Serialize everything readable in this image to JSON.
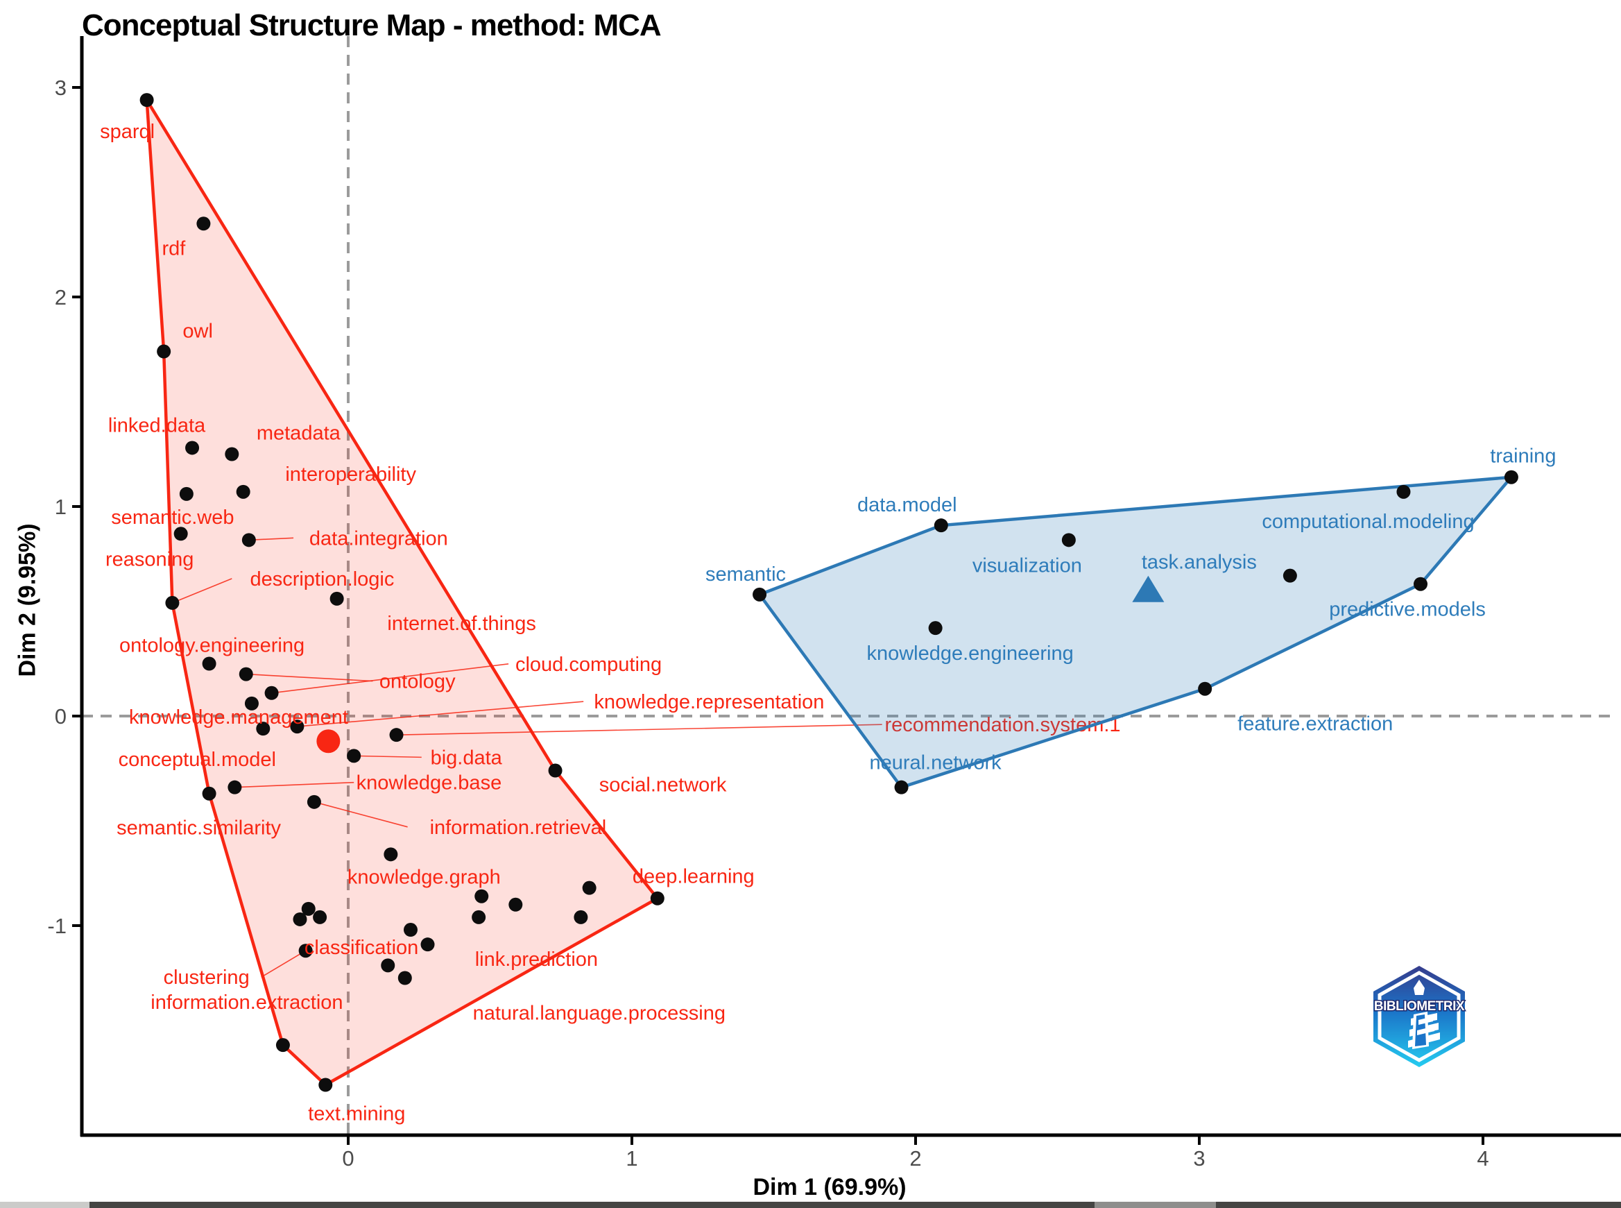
{
  "title": "Conceptual Structure Map - method: MCA",
  "axes": {
    "x_label": "Dim 1 (69.9%)",
    "y_label": "Dim 2 (9.95%)",
    "x_ticks": [
      {
        "value": 0,
        "label": "0"
      },
      {
        "value": 1,
        "label": "1"
      },
      {
        "value": 2,
        "label": "2"
      },
      {
        "value": 3,
        "label": "3"
      },
      {
        "value": 4,
        "label": "4"
      }
    ],
    "y_ticks": [
      {
        "value": 3,
        "label": "3"
      },
      {
        "value": 2,
        "label": "2"
      },
      {
        "value": 1,
        "label": "1"
      },
      {
        "value": 0,
        "label": "0"
      },
      {
        "value": -1,
        "label": "-1"
      }
    ]
  },
  "colors": {
    "red_stroke": "#f82613",
    "red_fill": "rgba(248,38,19,0.15)",
    "red_text": "#f82613",
    "blue_stroke": "#2d79b5",
    "blue_fill": "rgba(45,121,181,0.22)",
    "blue_text": "#2e7cba",
    "dot": "#0d0d0d",
    "dashed": "#9b9b9b",
    "axis": "#000000",
    "tick_text": "#4c4c4c"
  },
  "logo": {
    "text": "BIBLIOMETRIX"
  },
  "chart_data": {
    "type": "scatter",
    "title": "Conceptual Structure Map - method: MCA",
    "xlabel": "Dim 1 (69.9%)",
    "ylabel": "Dim 2 (9.95%)",
    "xlim": [
      -1.0,
      4.5
    ],
    "ylim": [
      -2.0,
      3.25
    ],
    "grid": false,
    "zero_lines_dashed": true,
    "clusters": [
      {
        "name": "cluster-red",
        "centroid": {
          "x": -0.07,
          "y": -0.12,
          "marker": "circle"
        },
        "hull": [
          [
            -0.71,
            2.94
          ],
          [
            0.73,
            -0.26
          ],
          [
            1.09,
            -0.87
          ],
          [
            -0.08,
            -1.76
          ],
          [
            -0.23,
            -1.57
          ],
          [
            -0.49,
            -0.37
          ],
          [
            -0.62,
            0.54
          ],
          [
            -0.65,
            1.74
          ]
        ],
        "points": [
          {
            "term": "sparql",
            "x": -0.71,
            "y": 2.94,
            "dx": -28,
            "dy": 45,
            "leader": false
          },
          {
            "term": "rdf",
            "x": -0.51,
            "y": 2.35,
            "dx": -43,
            "dy": 35,
            "leader": false
          },
          {
            "term": "owl",
            "x": -0.65,
            "y": 1.74,
            "dx": 49,
            "dy": -30,
            "leader": false
          },
          {
            "term": "linked.data",
            "x": -0.55,
            "y": 1.28,
            "dx": -51,
            "dy": -33,
            "leader": false
          },
          {
            "term": "metadata",
            "x": -0.41,
            "y": 1.25,
            "dx": 96,
            "dy": -31,
            "leader": false
          },
          {
            "term": "semantic.web",
            "x": -0.57,
            "y": 1.06,
            "dx": -20,
            "dy": 33,
            "leader": false
          },
          {
            "term": "interoperability",
            "x": -0.37,
            "y": 1.07,
            "dx": 155,
            "dy": -26,
            "leader": false
          },
          {
            "term": "reasoning",
            "x": -0.59,
            "y": 0.87,
            "dx": -45,
            "dy": 36,
            "leader": false
          },
          {
            "term": "data.integration",
            "x": -0.35,
            "y": 0.84,
            "dx": 187,
            "dy": -3,
            "leader": true
          },
          {
            "term": "description.logic",
            "x": -0.62,
            "y": 0.54,
            "dx": 216,
            "dy": -35,
            "leader": true
          },
          {
            "term": "internet.of.things",
            "x": -0.04,
            "y": 0.56,
            "dx": 180,
            "dy": 35,
            "leader": false
          },
          {
            "term": "ontology.engineering",
            "x": -0.49,
            "y": 0.25,
            "dx": 4,
            "dy": -27,
            "leader": false
          },
          {
            "term": "ontology",
            "x": -0.36,
            "y": 0.2,
            "dx": 247,
            "dy": 10,
            "leader": true
          },
          {
            "term": "cloud.computing",
            "x": -0.27,
            "y": 0.11,
            "dx": 457,
            "dy": -42,
            "leader": true
          },
          {
            "term": "knowledge.management",
            "x": -0.34,
            "y": 0.06,
            "dx": -19,
            "dy": 19,
            "leader": false
          },
          {
            "term": "conceptual.model",
            "x": -0.3,
            "y": -0.06,
            "dx": -95,
            "dy": 44,
            "leader": false
          },
          {
            "term": "knowledge.representation",
            "x": -0.18,
            "y": -0.05,
            "dx": 594,
            "dy": -36,
            "leader": true
          },
          {
            "term": "big.data",
            "x": 0.02,
            "y": -0.19,
            "dx": 162,
            "dy": 2,
            "leader": true
          },
          {
            "term": "recommendation.system.1",
            "x": 0.17,
            "y": -0.09,
            "dx": 874,
            "dy": -15,
            "leader": true
          },
          {
            "term": "knowledge.base",
            "x": -0.4,
            "y": -0.34,
            "dx": 280,
            "dy": -7,
            "leader": true
          },
          {
            "term": "semantic.similarity",
            "x": -0.49,
            "y": -0.37,
            "dx": -15,
            "dy": 49,
            "leader": false
          },
          {
            "term": "information.retrieval",
            "x": -0.12,
            "y": -0.41,
            "dx": 294,
            "dy": 36,
            "leader": true
          },
          {
            "term": "social.network",
            "x": 0.73,
            "y": -0.26,
            "dx": 155,
            "dy": 20,
            "leader": false
          },
          {
            "term": "knowledge.graph",
            "x": 0.15,
            "y": -0.66,
            "dx": 48,
            "dy": 32,
            "leader": false
          },
          {
            "term": "classification",
            "x": -0.1,
            "y": -0.96,
            "dx": 60,
            "dy": 43,
            "leader": false
          },
          {
            "term": "clustering",
            "x": -0.15,
            "y": -1.12,
            "dx": -143,
            "dy": 38,
            "leader": true
          },
          {
            "term": "link.prediction",
            "x": 0.82,
            "y": -0.96,
            "dx": -64,
            "dy": 60,
            "leader": false
          },
          {
            "term": "deep.learning",
            "x": 1.09,
            "y": -0.87,
            "dx": 52,
            "dy": -32,
            "leader": false
          },
          {
            "term": "natural.language.processing",
            "x": 0.2,
            "y": -1.25,
            "dx": 280,
            "dy": 50,
            "leader": false
          },
          {
            "term": "information.extraction",
            "x": -0.23,
            "y": -1.57,
            "dx": -52,
            "dy": -62,
            "leader": false
          },
          {
            "term": "text.mining",
            "x": -0.08,
            "y": -1.76,
            "dx": 45,
            "dy": 41,
            "leader": false
          }
        ],
        "unlabeled_points": [
          [
            -0.14,
            -0.92
          ],
          [
            -0.17,
            -0.97
          ],
          [
            0.28,
            -1.09
          ],
          [
            0.47,
            -0.86
          ],
          [
            0.46,
            -0.96
          ],
          [
            0.22,
            -1.02
          ],
          [
            0.14,
            -1.19
          ],
          [
            0.85,
            -0.82
          ],
          [
            0.59,
            -0.9
          ]
        ]
      },
      {
        "name": "cluster-blue",
        "centroid": {
          "x": 2.82,
          "y": 0.6,
          "marker": "triangle"
        },
        "hull": [
          [
            1.45,
            0.58
          ],
          [
            2.09,
            0.91
          ],
          [
            4.1,
            1.14
          ],
          [
            3.78,
            0.63
          ],
          [
            3.02,
            0.13
          ],
          [
            1.95,
            -0.34
          ]
        ],
        "points": [
          {
            "term": "semantic",
            "x": 1.45,
            "y": 0.58,
            "dx": -20,
            "dy": -30,
            "leader": false
          },
          {
            "term": "data.model",
            "x": 2.09,
            "y": 0.91,
            "dx": -49,
            "dy": -30,
            "leader": false
          },
          {
            "term": "visualization",
            "x": 2.54,
            "y": 0.84,
            "dx": -60,
            "dy": 36,
            "leader": false
          },
          {
            "term": "knowledge.engineering",
            "x": 2.07,
            "y": 0.42,
            "dx": 50,
            "dy": 36,
            "leader": false
          },
          {
            "term": "task.analysis",
            "x": 3.32,
            "y": 0.67,
            "dx": -131,
            "dy": -20,
            "leader": false
          },
          {
            "term": "computational.modeling",
            "x": 3.72,
            "y": 1.07,
            "dx": -51,
            "dy": 42,
            "leader": false
          },
          {
            "term": "training",
            "x": 4.1,
            "y": 1.14,
            "dx": 17,
            "dy": -31,
            "leader": false
          },
          {
            "term": "predictive.models",
            "x": 3.78,
            "y": 0.63,
            "dx": -19,
            "dy": 36,
            "leader": false
          },
          {
            "term": "feature.extraction",
            "x": 3.02,
            "y": 0.13,
            "dx": 159,
            "dy": 50,
            "leader": false
          },
          {
            "term": "neural.network",
            "x": 1.95,
            "y": -0.34,
            "dx": 49,
            "dy": -36,
            "leader": false
          }
        ],
        "unlabeled_points": []
      }
    ]
  },
  "bottom_bar": {
    "segments": [
      {
        "from": 0,
        "to": 129,
        "color": "#cbcbc9"
      },
      {
        "from": 129,
        "to": 1578,
        "color": "#454543"
      },
      {
        "from": 1578,
        "to": 1753,
        "color": "#8e8e8c"
      },
      {
        "from": 1753,
        "to": 2337,
        "color": "#454543"
      }
    ]
  }
}
